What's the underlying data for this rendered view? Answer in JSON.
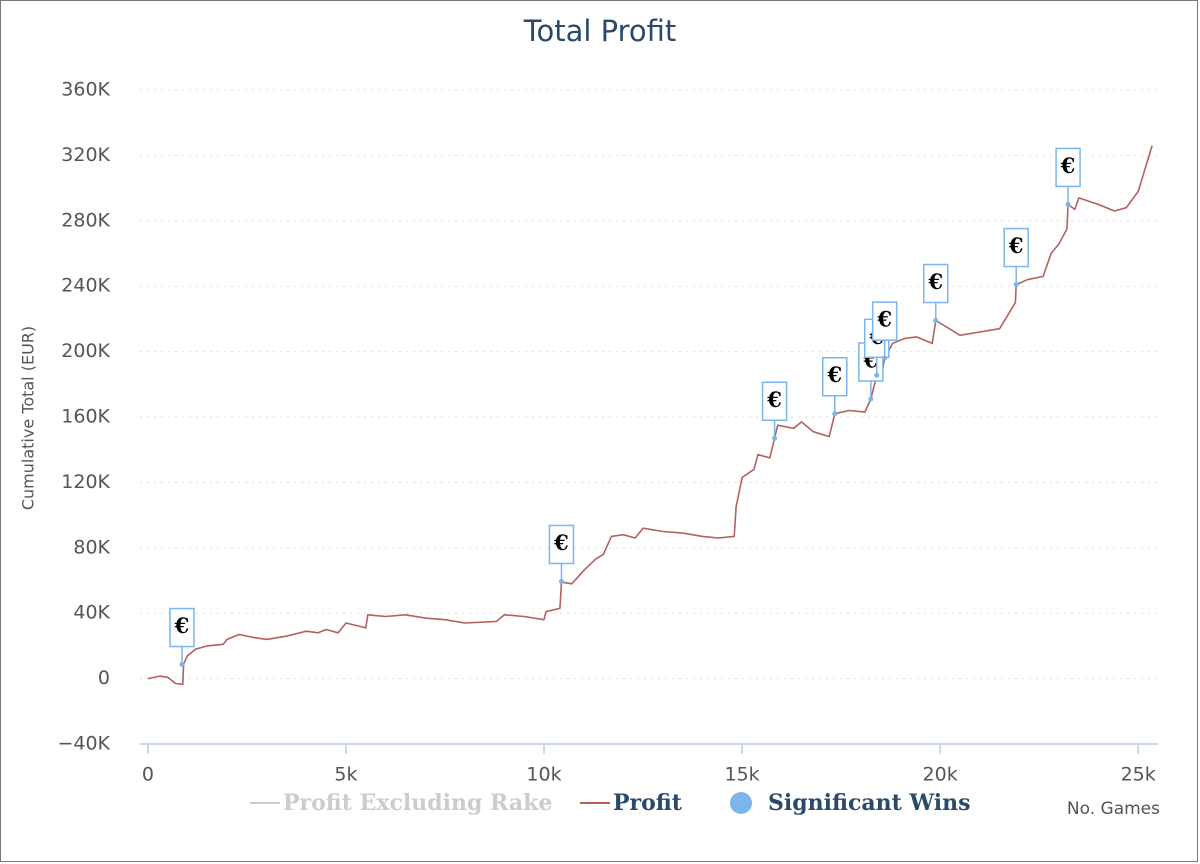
{
  "chart_data": {
    "type": "line",
    "title": "Total Profit",
    "x_label": "No. Games",
    "y_label": "Cumulative Total (EUR)",
    "xlim": [
      -200,
      25500
    ],
    "xticks": [
      0,
      {
        "value": 5000,
        "label": "5k"
      },
      {
        "value": 10000,
        "label": "10k"
      },
      {
        "value": 15000,
        "label": "15k"
      },
      {
        "value": 20000,
        "label": "20k"
      },
      {
        "value": 25000,
        "label": "25k"
      }
    ],
    "ylim": [
      -40000,
      360000
    ],
    "yticks": [
      {
        "value": -40000,
        "label": "−40K"
      },
      0,
      {
        "value": 40000,
        "label": "40K"
      },
      {
        "value": 80000,
        "label": "80K"
      },
      {
        "value": 120000,
        "label": "120K"
      },
      {
        "value": 160000,
        "label": "160K"
      },
      {
        "value": 200000,
        "label": "200K"
      },
      {
        "value": 240000,
        "label": "240K"
      },
      {
        "value": 280000,
        "label": "280K"
      },
      {
        "value": 320000,
        "label": "320K"
      },
      {
        "value": 360000,
        "label": "360K"
      }
    ],
    "grid": true,
    "series": [
      {
        "name": "Profit Excluding Rake",
        "color": "#cccccc",
        "kind": "line",
        "visible": false
      },
      {
        "name": "Profit",
        "color": "#b5605f",
        "kind": "line",
        "visible": true,
        "x": [
          0,
          300,
          500,
          700,
          880,
          900,
          1000,
          1200,
          1500,
          1900,
          2000,
          2300,
          2700,
          3000,
          3500,
          4000,
          4300,
          4500,
          4800,
          5000,
          5500,
          5550,
          6000,
          6500,
          7000,
          7500,
          8000,
          8800,
          9000,
          9500,
          10000,
          10050,
          10400,
          10440,
          10700,
          11000,
          11300,
          11500,
          11700,
          12000,
          12300,
          12500,
          13000,
          13500,
          14000,
          14400,
          14800,
          14850,
          15000,
          15300,
          15400,
          15700,
          15820,
          15900,
          16300,
          16500,
          16800,
          17200,
          17340,
          17700,
          18100,
          18250,
          18400,
          18500,
          18600,
          18800,
          19100,
          19400,
          19800,
          19890,
          20300,
          20500,
          21000,
          21500,
          21900,
          21920,
          22200,
          22600,
          22800,
          23000,
          23200,
          23230,
          23400,
          23500,
          24000,
          24400,
          24700,
          25000,
          25100,
          25350
        ],
        "values": [
          0,
          1500,
          800,
          -3000,
          -3500,
          9000,
          14000,
          18000,
          20000,
          21000,
          24000,
          27000,
          25000,
          24000,
          26000,
          29000,
          28000,
          30000,
          28000,
          34000,
          31000,
          39000,
          38000,
          39000,
          37000,
          36000,
          34000,
          35000,
          39000,
          38000,
          36000,
          41000,
          43000,
          59000,
          58000,
          66000,
          73000,
          76000,
          87000,
          88000,
          86000,
          92000,
          90000,
          89000,
          87000,
          86000,
          87000,
          105000,
          123000,
          128000,
          137000,
          135000,
          147000,
          155000,
          153000,
          157000,
          151000,
          148000,
          162000,
          164000,
          163000,
          171000,
          185500,
          183000,
          196000,
          205000,
          208000,
          209000,
          205000,
          219000,
          213000,
          210000,
          212000,
          214000,
          230000,
          241000,
          244000,
          246000,
          260000,
          266000,
          275000,
          290000,
          287000,
          294000,
          290000,
          286000,
          288000,
          298000,
          306000,
          326000
        ]
      },
      {
        "name": "Significant Wins",
        "color": "#7cb5ec",
        "kind": "scatter",
        "visible": true,
        "x": [
          860,
          10440,
          15820,
          17340,
          18250,
          18400,
          18600,
          19890,
          21920,
          23230
        ],
        "values": [
          8600,
          59400,
          147000,
          162000,
          171000,
          185500,
          196000,
          219000,
          241000,
          290000
        ],
        "labels": [
          "€",
          "€",
          "€",
          "€",
          "€",
          "€",
          "€",
          "€",
          "€",
          "€"
        ]
      }
    ]
  }
}
